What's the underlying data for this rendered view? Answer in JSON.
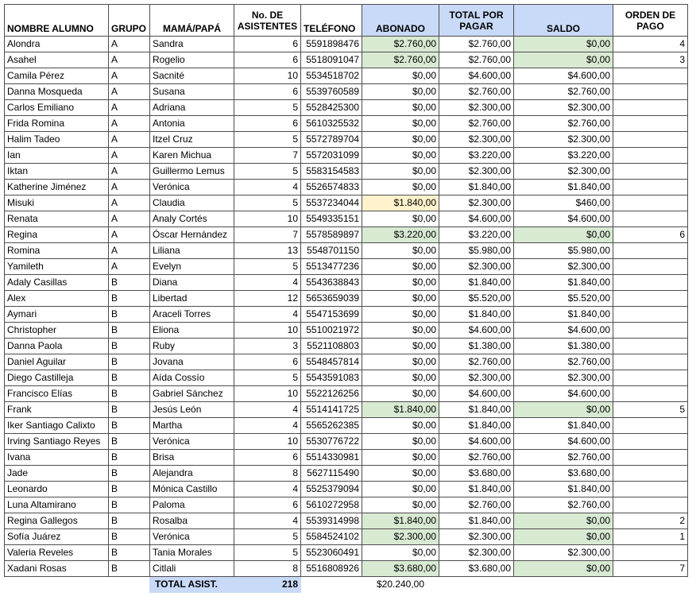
{
  "headers": {
    "nombre": "NOMBRE ALUMNO",
    "grupo": "GRUPO",
    "padre": "MAMÁ/PAPÁ",
    "asistentes": "No. DE ASISTENTES",
    "telefono": "TELÉFONO",
    "abonado": "ABONADO",
    "total": "TOTAL POR PAGAR",
    "saldo": "SALDO",
    "orden": "ORDEN DE PAGO"
  },
  "colors": {
    "header_blue": "#c9daf8",
    "paid_green": "#d9ead3",
    "partial_yellow": "#fff2cc",
    "border": "#4d4d4d"
  },
  "rows": [
    {
      "nombre": "Alondra",
      "grupo": "A",
      "padre": "Sandra",
      "asistentes": "6",
      "telefono": "5591898476",
      "abonado": "$2.760,00",
      "total": "$2.760,00",
      "saldo": "$0,00",
      "orden": "4",
      "status": "paid"
    },
    {
      "nombre": "Asahel",
      "grupo": "A",
      "padre": "Rogelio",
      "asistentes": "6",
      "telefono": "5518091047",
      "abonado": "$2.760,00",
      "total": "$2.760,00",
      "saldo": "$0,00",
      "orden": "3",
      "status": "paid"
    },
    {
      "nombre": "Camila Pérez",
      "grupo": "A",
      "padre": "Sacnité",
      "asistentes": "10",
      "telefono": "5534518702",
      "abonado": "$0,00",
      "total": "$4.600,00",
      "saldo": "$4.600,00",
      "orden": "",
      "status": "none"
    },
    {
      "nombre": "Danna Mosqueda",
      "grupo": "A",
      "padre": "Susana",
      "asistentes": "6",
      "telefono": "5539760589",
      "abonado": "$0,00",
      "total": "$2.760,00",
      "saldo": "$2.760,00",
      "orden": "",
      "status": "none"
    },
    {
      "nombre": "Carlos Emiliano",
      "grupo": "A",
      "padre": "Adriana",
      "asistentes": "5",
      "telefono": "5528425300",
      "abonado": "$0,00",
      "total": "$2.300,00",
      "saldo": "$2.300,00",
      "orden": "",
      "status": "none"
    },
    {
      "nombre": "Frida Romina",
      "grupo": "A",
      "padre": "Antonia",
      "asistentes": "6",
      "telefono": "5610325532",
      "abonado": "$0,00",
      "total": "$2.760,00",
      "saldo": "$2.760,00",
      "orden": "",
      "status": "none"
    },
    {
      "nombre": "Halim Tadeo",
      "grupo": "A",
      "padre": "Itzel Cruz",
      "asistentes": "5",
      "telefono": "5572789704",
      "abonado": "$0,00",
      "total": "$2.300,00",
      "saldo": "$2.300,00",
      "orden": "",
      "status": "none"
    },
    {
      "nombre": "Ian",
      "grupo": "A",
      "padre": "Karen Michua",
      "asistentes": "7",
      "telefono": "5572031099",
      "abonado": "$0,00",
      "total": "$3.220,00",
      "saldo": "$3.220,00",
      "orden": "",
      "status": "none"
    },
    {
      "nombre": "Iktan",
      "grupo": "A",
      "padre": "Guillermo Lemus",
      "asistentes": "5",
      "telefono": "5583154583",
      "abonado": "$0,00",
      "total": "$2.300,00",
      "saldo": "$2.300,00",
      "orden": "",
      "status": "none"
    },
    {
      "nombre": "Katherine Jiménez",
      "grupo": "A",
      "padre": "Verónica",
      "asistentes": "4",
      "telefono": "5526574833",
      "abonado": "$0,00",
      "total": "$1.840,00",
      "saldo": "$1.840,00",
      "orden": "",
      "status": "none"
    },
    {
      "nombre": "Misuki",
      "grupo": "A",
      "padre": "Claudia",
      "asistentes": "5",
      "telefono": "5537234044",
      "abonado": "$1.840,00",
      "total": "$2.300,00",
      "saldo": "$460,00",
      "orden": "",
      "status": "partial"
    },
    {
      "nombre": "Renata",
      "grupo": "A",
      "padre": "Analy Cortés",
      "asistentes": "10",
      "telefono": "5549335151",
      "abonado": "$0,00",
      "total": "$4.600,00",
      "saldo": "$4.600,00",
      "orden": "",
      "status": "none"
    },
    {
      "nombre": "Regina",
      "grupo": "A",
      "padre": "Óscar Hernández",
      "asistentes": "7",
      "telefono": "5578589897",
      "abonado": "$3.220,00",
      "total": "$3.220,00",
      "saldo": "$0,00",
      "orden": "6",
      "status": "paid"
    },
    {
      "nombre": "Romina",
      "grupo": "A",
      "padre": "Liliana",
      "asistentes": "13",
      "telefono": "5548701150",
      "abonado": "$0,00",
      "total": "$5.980,00",
      "saldo": "$5.980,00",
      "orden": "",
      "status": "none"
    },
    {
      "nombre": "Yamileth",
      "grupo": "A",
      "padre": "Evelyn",
      "asistentes": "5",
      "telefono": "5513477236",
      "abonado": "$0,00",
      "total": "$2.300,00",
      "saldo": "$2.300,00",
      "orden": "",
      "status": "none"
    },
    {
      "nombre": "Adaly Casillas",
      "grupo": "B",
      "padre": "Diana",
      "asistentes": "4",
      "telefono": "5543638843",
      "abonado": "$0,00",
      "total": "$1.840,00",
      "saldo": "$1.840,00",
      "orden": "",
      "status": "none"
    },
    {
      "nombre": "Alex",
      "grupo": "B",
      "padre": "Libertad",
      "asistentes": "12",
      "telefono": "5653659039",
      "abonado": "$0,00",
      "total": "$5.520,00",
      "saldo": "$5.520,00",
      "orden": "",
      "status": "none"
    },
    {
      "nombre": "Aymari",
      "grupo": "B",
      "padre": "Araceli Torres",
      "asistentes": "4",
      "telefono": "5547153699",
      "abonado": "$0,00",
      "total": "$1.840,00",
      "saldo": "$1.840,00",
      "orden": "",
      "status": "none"
    },
    {
      "nombre": "Christopher",
      "grupo": "B",
      "padre": "Eliona",
      "asistentes": "10",
      "telefono": "5510021972",
      "abonado": "$0,00",
      "total": "$4.600,00",
      "saldo": "$4.600,00",
      "orden": "",
      "status": "none"
    },
    {
      "nombre": "Danna Paola",
      "grupo": "B",
      "padre": "Ruby",
      "asistentes": "3",
      "telefono": "5521108803",
      "abonado": "$0,00",
      "total": "$1.380,00",
      "saldo": "$1.380,00",
      "orden": "",
      "status": "none"
    },
    {
      "nombre": "Daniel Aguilar",
      "grupo": "B",
      "padre": "Jovana",
      "asistentes": "6",
      "telefono": "5548457814",
      "abonado": "$0,00",
      "total": "$2.760,00",
      "saldo": "$2.760,00",
      "orden": "",
      "status": "none"
    },
    {
      "nombre": "Diego Castilleja",
      "grupo": "B",
      "padre": "Aída Cossío",
      "asistentes": "5",
      "telefono": "5543591083",
      "abonado": "$0,00",
      "total": "$2.300,00",
      "saldo": "$2.300,00",
      "orden": "",
      "status": "none"
    },
    {
      "nombre": "Francisco Elías",
      "grupo": "B",
      "padre": "Gabriel Sánchez",
      "asistentes": "10",
      "telefono": "5522126256",
      "abonado": "$0,00",
      "total": "$4.600,00",
      "saldo": "$4.600,00",
      "orden": "",
      "status": "none"
    },
    {
      "nombre": "Frank",
      "grupo": "B",
      "padre": "Jesús León",
      "asistentes": "4",
      "telefono": "5514141725",
      "abonado": "$1.840,00",
      "total": "$1.840,00",
      "saldo": "$0,00",
      "orden": "5",
      "status": "paid"
    },
    {
      "nombre": "Iker Santiago Calixto",
      "grupo": "B",
      "padre": "Martha",
      "asistentes": "4",
      "telefono": "5565262385",
      "abonado": "$0,00",
      "total": "$1.840,00",
      "saldo": "$1.840,00",
      "orden": "",
      "status": "none"
    },
    {
      "nombre": "Irving Santiago Reyes",
      "grupo": "B",
      "padre": "Verónica",
      "asistentes": "10",
      "telefono": "5530776722",
      "abonado": "$0,00",
      "total": "$4.600,00",
      "saldo": "$4.600,00",
      "orden": "",
      "status": "none"
    },
    {
      "nombre": "Ivana",
      "grupo": "B",
      "padre": "Brisa",
      "asistentes": "6",
      "telefono": "5514330981",
      "abonado": "$0,00",
      "total": "$2.760,00",
      "saldo": "$2.760,00",
      "orden": "",
      "status": "none"
    },
    {
      "nombre": "Jade",
      "grupo": "B",
      "padre": "Alejandra",
      "asistentes": "8",
      "telefono": "5627115490",
      "abonado": "$0,00",
      "total": "$3.680,00",
      "saldo": "$3.680,00",
      "orden": "",
      "status": "none"
    },
    {
      "nombre": "Leonardo",
      "grupo": "B",
      "padre": "Mónica Castillo",
      "asistentes": "4",
      "telefono": "5525379094",
      "abonado": "$0,00",
      "total": "$1.840,00",
      "saldo": "$1.840,00",
      "orden": "",
      "status": "none"
    },
    {
      "nombre": "Luna Altamirano",
      "grupo": "B",
      "padre": "Paloma",
      "asistentes": "6",
      "telefono": "5610272958",
      "abonado": "$0,00",
      "total": "$2.760,00",
      "saldo": "$2.760,00",
      "orden": "",
      "status": "none"
    },
    {
      "nombre": "Regina Gallegos",
      "grupo": "B",
      "padre": "Rosalba",
      "asistentes": "4",
      "telefono": "5539314998",
      "abonado": "$1.840,00",
      "total": "$1.840,00",
      "saldo": "$0,00",
      "orden": "2",
      "status": "paid"
    },
    {
      "nombre": "Sofía Juárez",
      "grupo": "B",
      "padre": "Verónica",
      "asistentes": "5",
      "telefono": "5584524102",
      "abonado": "$2.300,00",
      "total": "$2.300,00",
      "saldo": "$0,00",
      "orden": "1",
      "status": "paid"
    },
    {
      "nombre": "Valeria Reveles",
      "grupo": "B",
      "padre": "Tania Morales",
      "asistentes": "5",
      "telefono": "5523060491",
      "abonado": "$0,00",
      "total": "$2.300,00",
      "saldo": "$2.300,00",
      "orden": "",
      "status": "none"
    },
    {
      "nombre": "Xadani Rosas",
      "grupo": "B",
      "padre": "Citlali",
      "asistentes": "8",
      "telefono": "5516808926",
      "abonado": "$3.680,00",
      "total": "$3.680,00",
      "saldo": "$0,00",
      "orden": "7",
      "status": "paid"
    }
  ],
  "totals": {
    "label": "TOTAL ASIST.",
    "asistentes": "218",
    "abonado_sum": "$20.240,00"
  }
}
